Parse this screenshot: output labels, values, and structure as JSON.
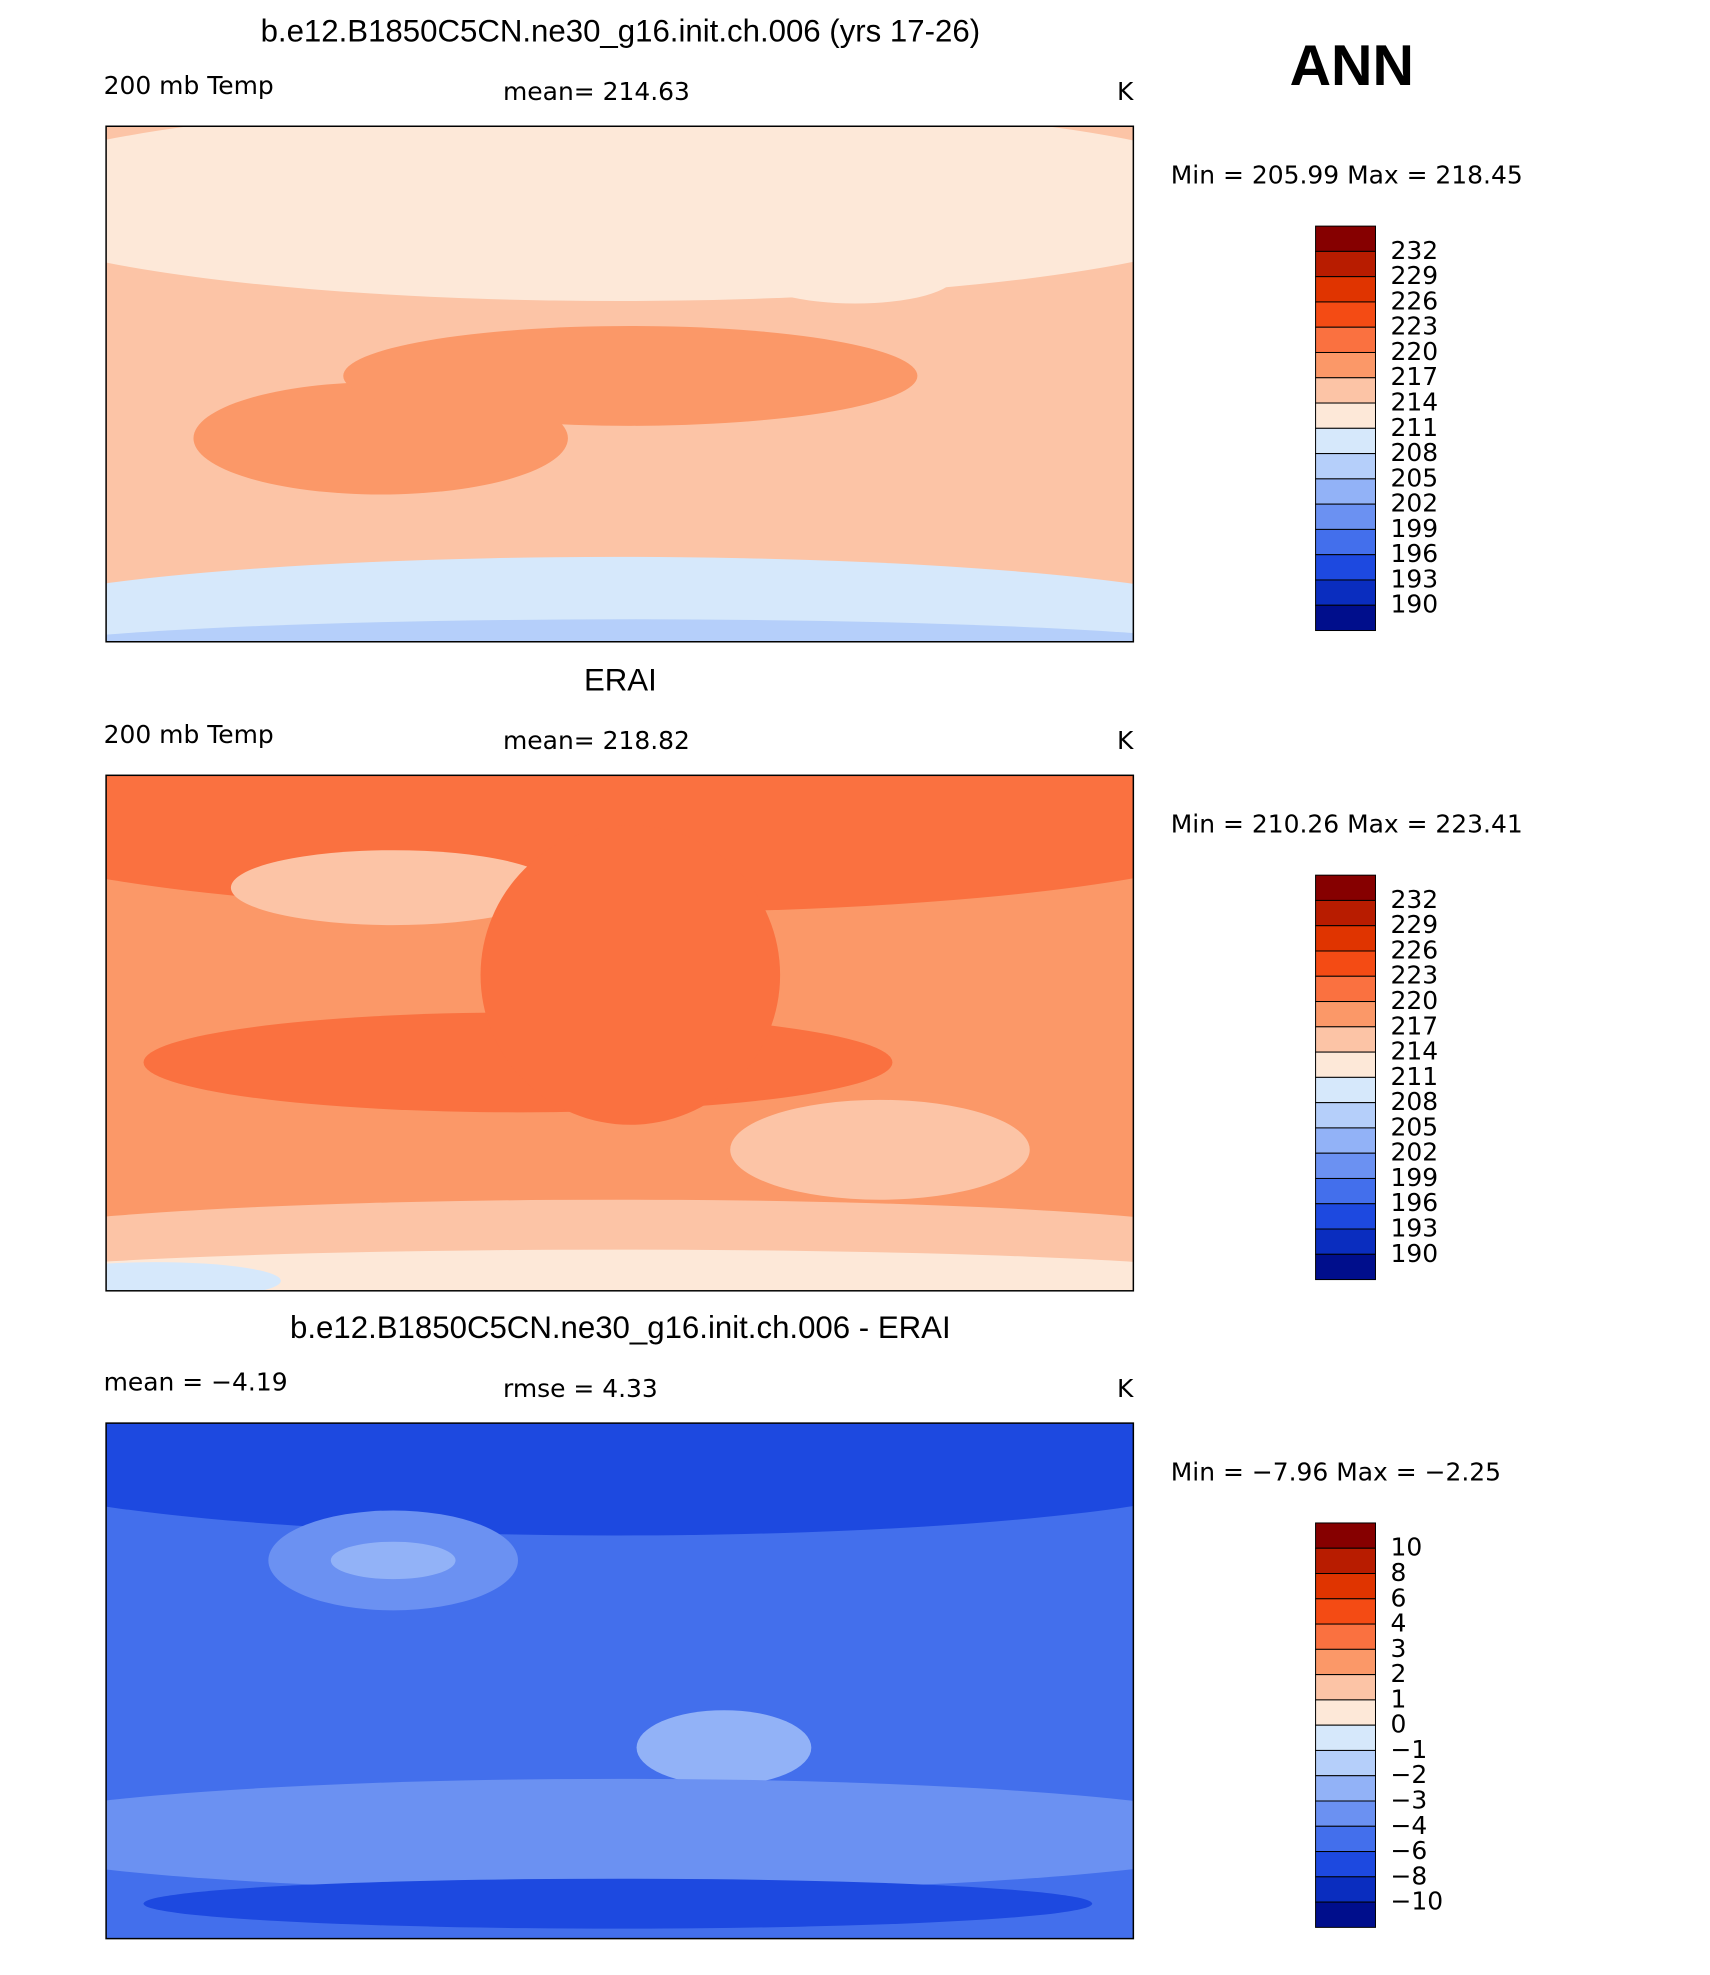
{
  "title": "ANN",
  "panels": [
    {
      "title": "b.e12.B1850C5CN.ne30_g16.init.ch.006 (yrs 17-26)",
      "left": "200 mb Temp",
      "center": "mean=  214.63",
      "units": "K",
      "range": "Min  =  205.99  Max  =  218.45",
      "colorbar": {
        "labels": [
          "232",
          "229",
          "226",
          "223",
          "220",
          "217",
          "214",
          "211",
          "208",
          "205",
          "202",
          "199",
          "196",
          "193",
          "190"
        ],
        "colors": [
          "#860000",
          "#b81c00",
          "#e03400",
          "#f44b14",
          "#fa7140",
          "#fb9868",
          "#fcc4a6",
          "#fde8d8",
          "#d6e8fb",
          "#b5cffa",
          "#92b2f7",
          "#6b91f2",
          "#436fec",
          "#1d49e0",
          "#0a2dbf",
          "#000e8c"
        ]
      }
    },
    {
      "title": "ERAI",
      "left": "200 mb Temp",
      "center": "mean=  218.82",
      "units": "K",
      "range": "Min  =  210.26  Max  =  223.41",
      "colorbar": {
        "labels": [
          "232",
          "229",
          "226",
          "223",
          "220",
          "217",
          "214",
          "211",
          "208",
          "205",
          "202",
          "199",
          "196",
          "193",
          "190"
        ],
        "colors": [
          "#860000",
          "#b81c00",
          "#e03400",
          "#f44b14",
          "#fa7140",
          "#fb9868",
          "#fcc4a6",
          "#fde8d8",
          "#d6e8fb",
          "#b5cffa",
          "#92b2f7",
          "#6b91f2",
          "#436fec",
          "#1d49e0",
          "#0a2dbf",
          "#000e8c"
        ]
      }
    },
    {
      "title": "b.e12.B1850C5CN.ne30_g16.init.ch.006 - ERAI",
      "left": "mean =   −4.19",
      "center": "rmse =    4.33",
      "units": "K",
      "range": "Min  =   −7.96  Max  =   −2.25",
      "colorbar": {
        "labels": [
          "10",
          "8",
          "6",
          "4",
          "3",
          "2",
          "1",
          "0",
          "−1",
          "−2",
          "−3",
          "−4",
          "−6",
          "−8",
          "−10"
        ],
        "colors": [
          "#860000",
          "#b81c00",
          "#e03400",
          "#f44b14",
          "#fa7140",
          "#fb9868",
          "#fcc4a6",
          "#fde8d8",
          "#d6e8fb",
          "#b5cffa",
          "#92b2f7",
          "#6b91f2",
          "#436fec",
          "#1d49e0",
          "#0a2dbf",
          "#000e8c"
        ]
      }
    }
  ]
}
